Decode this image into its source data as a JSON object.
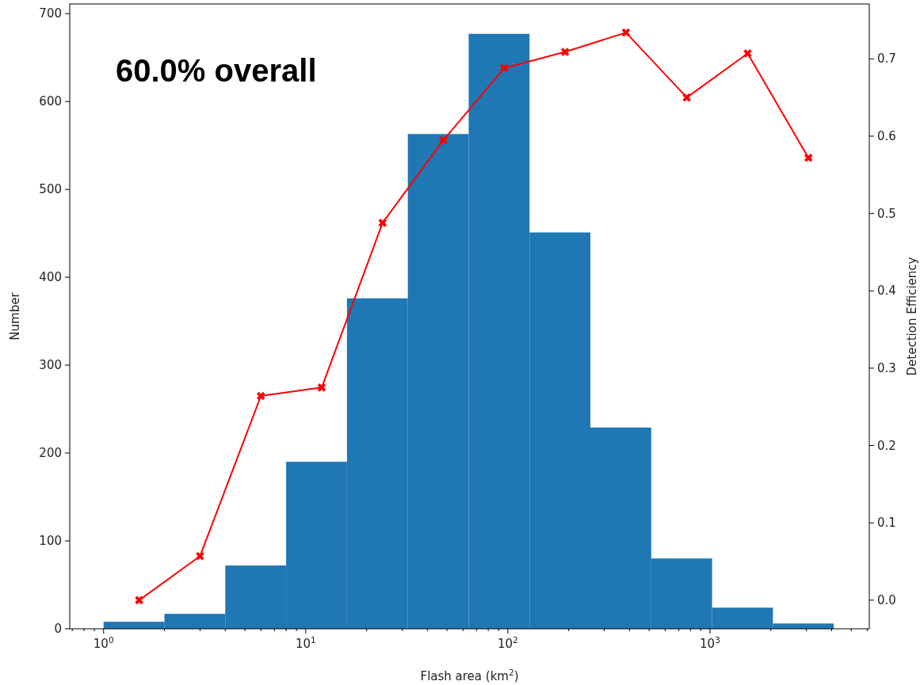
{
  "chart_data": {
    "type": "histogram",
    "xlabel": "Flash area (km$^{2}$)",
    "ylabel": "Number",
    "y2label": "Detection Efficiency",
    "annotations": [
      "60.0% overall"
    ],
    "bins": [
      1,
      2,
      4,
      8,
      16,
      32,
      64,
      128,
      256,
      512,
      1024,
      2048,
      4096
    ],
    "values": [
      8,
      17,
      72,
      190,
      376,
      563,
      677,
      451,
      229,
      80,
      24,
      6
    ],
    "color": "#1f77b4",
    "series": [
      {
        "type": "line",
        "axis": "y2",
        "color": "#ff0000",
        "marker": "cross",
        "x": [
          1.5,
          3,
          6,
          12,
          24,
          48,
          96,
          192,
          384,
          768,
          1536,
          3072
        ],
        "values": [
          0.0,
          0.057,
          0.264,
          0.275,
          0.488,
          0.595,
          0.688,
          0.709,
          0.734,
          0.65,
          0.707,
          0.572
        ]
      }
    ],
    "log": "x",
    "xlim": [
      0.68,
      6140
    ],
    "xticks": [
      {
        "value": 0.7,
        "label": null
      },
      {
        "value": 0.8,
        "label": null
      },
      {
        "value": 0.9,
        "label": null
      },
      {
        "value": 1,
        "label": "10$^{0}$"
      },
      {
        "value": 2,
        "label": null
      },
      {
        "value": 3,
        "label": null
      },
      {
        "value": 4,
        "label": null
      },
      {
        "value": 5,
        "label": null
      },
      {
        "value": 6,
        "label": null
      },
      {
        "value": 7,
        "label": null
      },
      {
        "value": 8,
        "label": null
      },
      {
        "value": 9,
        "label": null
      },
      {
        "value": 10,
        "label": "10$^{1}$"
      },
      {
        "value": 20,
        "label": null
      },
      {
        "value": 30,
        "label": null
      },
      {
        "value": 40,
        "label": null
      },
      {
        "value": 50,
        "label": null
      },
      {
        "value": 60,
        "label": null
      },
      {
        "value": 70,
        "label": null
      },
      {
        "value": 80,
        "label": null
      },
      {
        "value": 90,
        "label": null
      },
      {
        "value": 100,
        "label": "10$^{2}$"
      },
      {
        "value": 200,
        "label": null
      },
      {
        "value": 300,
        "label": null
      },
      {
        "value": 400,
        "label": null
      },
      {
        "value": 500,
        "label": null
      },
      {
        "value": 600,
        "label": null
      },
      {
        "value": 700,
        "label": null
      },
      {
        "value": 800,
        "label": null
      },
      {
        "value": 900,
        "label": null
      },
      {
        "value": 1000,
        "label": "10$^{3}$"
      },
      {
        "value": 2000,
        "label": null
      },
      {
        "value": 3000,
        "label": null
      },
      {
        "value": 4000,
        "label": null
      },
      {
        "value": 5000,
        "label": null
      },
      {
        "value": 6000,
        "label": null
      }
    ],
    "ylim": [
      0,
      711
    ],
    "yticks": [
      0,
      100,
      200,
      300,
      400,
      500,
      600,
      700
    ],
    "y2lim": [
      -0.037,
      0.771
    ],
    "y2ticks": [
      {
        "value": 0,
        "label": "0.0"
      },
      0.1,
      0.2,
      0.3,
      0.4,
      0.5,
      0.6,
      0.7
    ],
    "grid": false
  }
}
